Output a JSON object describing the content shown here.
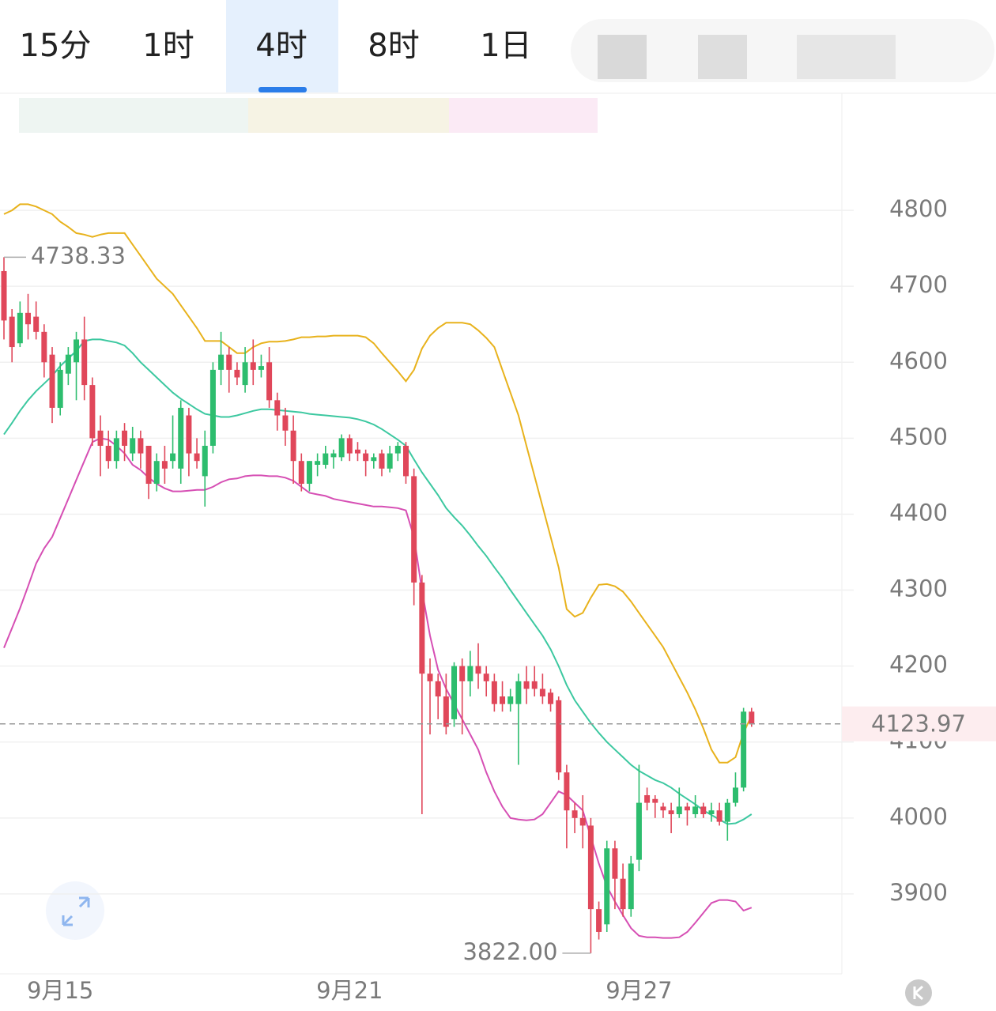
{
  "tabs": [
    "15分",
    "1时",
    "4时",
    "8时",
    "1日"
  ],
  "selected_tab": 2,
  "chart_data": {
    "type": "candlestick",
    "categories": [
      null,
      null,
      null,
      null,
      null,
      null,
      null,
      "9月15",
      null,
      null,
      null,
      null,
      null,
      null,
      null,
      null,
      null,
      null,
      null,
      null,
      null,
      null,
      null,
      null,
      null,
      null,
      null,
      null,
      null,
      null,
      null,
      null,
      null,
      null,
      null,
      null,
      null,
      null,
      null,
      null,
      null,
      null,
      null,
      "9月21",
      null,
      null,
      null,
      null,
      null,
      null,
      null,
      null,
      null,
      null,
      null,
      null,
      null,
      null,
      null,
      null,
      null,
      null,
      null,
      null,
      null,
      null,
      null,
      null,
      null,
      null,
      null,
      null,
      null,
      null,
      null,
      null,
      null,
      null,
      null,
      "9月27",
      null,
      null,
      null,
      null,
      null,
      null,
      null,
      null,
      null,
      null,
      null,
      null,
      null,
      null
    ],
    "open": [
      4720,
      4660,
      4625,
      4665,
      4660,
      4640,
      4610,
      4540,
      4585,
      4600,
      4630,
      4570,
      4510,
      4490,
      4470,
      4510,
      4480,
      4500,
      4490,
      4440,
      4470,
      4470,
      4460,
      4530,
      4480,
      4450,
      4490,
      4590,
      4610,
      4590,
      4570,
      4600,
      4590,
      4600,
      4550,
      4530,
      4510,
      4470,
      4440,
      4465,
      4465,
      4475,
      4475,
      4500,
      4485,
      4480,
      4470,
      4480,
      4460,
      4480,
      4490,
      4450,
      4310,
      4190,
      4180,
      4160,
      4130,
      4200,
      4180,
      4200,
      4190,
      4180,
      4160,
      4150,
      4150,
      4180,
      4180,
      4170,
      4165,
      4155,
      4060,
      4010,
      4000,
      3990,
      3880,
      3860,
      3960,
      3920,
      3880,
      3945,
      4030,
      4025,
      4015,
      4010,
      4005,
      4015,
      4005,
      4015,
      4005,
      4010,
      3995,
      4020,
      4040,
      4140
    ],
    "high": [
      4738.33,
      4670,
      4680,
      4690,
      4680,
      4650,
      4620,
      4600,
      4620,
      4640,
      4660,
      4580,
      4530,
      4510,
      4510,
      4520,
      4515,
      4510,
      4490,
      4480,
      4490,
      4530,
      4550,
      4540,
      4500,
      4510,
      4600,
      4640,
      4620,
      4600,
      4620,
      4630,
      4610,
      4620,
      4560,
      4540,
      4530,
      4480,
      4470,
      4480,
      4490,
      4485,
      4505,
      4505,
      4495,
      4485,
      4480,
      4485,
      4490,
      4495,
      4495,
      4460,
      4320,
      4210,
      4190,
      4190,
      4205,
      4210,
      4220,
      4230,
      4200,
      4190,
      4180,
      4170,
      4190,
      4200,
      4200,
      4190,
      4170,
      4160,
      4070,
      4020,
      4030,
      4000,
      3890,
      3970,
      3970,
      3940,
      3950,
      4070,
      4040,
      4030,
      4020,
      4020,
      4040,
      4020,
      4030,
      4020,
      4020,
      4020,
      4025,
      4060,
      4145,
      4145
    ],
    "low": [
      4630,
      4600,
      4620,
      4630,
      4630,
      4580,
      4520,
      4530,
      4570,
      4550,
      4550,
      4490,
      4450,
      4460,
      4460,
      4470,
      4470,
      4460,
      4420,
      4430,
      4440,
      4460,
      4440,
      4450,
      4460,
      4410,
      4480,
      4570,
      4560,
      4570,
      4560,
      4570,
      4580,
      4540,
      4510,
      4490,
      4440,
      4430,
      4430,
      4450,
      4460,
      4460,
      4470,
      4470,
      4470,
      4450,
      4460,
      4450,
      4455,
      4470,
      4440,
      4280,
      4005,
      4110,
      4130,
      4110,
      4120,
      4110,
      4160,
      4170,
      4160,
      4140,
      4140,
      4140,
      4070,
      4150,
      4160,
      4150,
      4140,
      4050,
      3960,
      3980,
      3960,
      3822,
      3840,
      3850,
      3880,
      3870,
      3870,
      3930,
      4010,
      4000,
      4000,
      3980,
      4000,
      3990,
      4000,
      4000,
      3995,
      3990,
      3970,
      4015,
      4035,
      4120
    ],
    "close": [
      4655,
      4620,
      4665,
      4650,
      4640,
      4600,
      4540,
      4590,
      4610,
      4630,
      4570,
      4500,
      4490,
      4470,
      4500,
      4490,
      4500,
      4480,
      4440,
      4470,
      4460,
      4480,
      4540,
      4480,
      4470,
      4490,
      4590,
      4610,
      4590,
      4580,
      4600,
      4590,
      4595,
      4550,
      4530,
      4510,
      4470,
      4440,
      4470,
      4470,
      4480,
      4480,
      4500,
      4480,
      4480,
      4470,
      4475,
      4460,
      4480,
      4490,
      4450,
      4310,
      4190,
      4180,
      4160,
      4120,
      4200,
      4180,
      4200,
      4190,
      4180,
      4150,
      4150,
      4160,
      4180,
      4170,
      4170,
      4160,
      4150,
      4060,
      4010,
      4000,
      3990,
      3880,
      3850,
      3960,
      3920,
      3880,
      3940,
      4020,
      4020,
      4020,
      4010,
      4005,
      4015,
      4010,
      4015,
      4005,
      4010,
      3995,
      4020,
      4040,
      4140,
      4123.97
    ],
    "up_color": "#2dbd6e",
    "down_color": "#e0475a",
    "series": [
      {
        "color": "#e8b21c",
        "values": [
          4795,
          4800,
          4808,
          4808,
          4805,
          4800,
          4795,
          4785,
          4778,
          4770,
          4768,
          4765,
          4768,
          4770,
          4770,
          4770,
          4755,
          4740,
          4725,
          4710,
          4700,
          4690,
          4675,
          4660,
          4645,
          4628,
          4628,
          4628,
          4620,
          4612,
          4612,
          4620,
          4625,
          4627,
          4627,
          4628,
          4630,
          4633,
          4633,
          4634,
          4634,
          4635,
          4635,
          4635,
          4635,
          4633,
          4625,
          4612,
          4600,
          4588,
          4575,
          4590,
          4618,
          4635,
          4645,
          4652,
          4652,
          4652,
          4650,
          4642,
          4632,
          4620,
          4590,
          4560,
          4530,
          4490,
          4450,
          4410,
          4370,
          4330,
          4275,
          4265,
          4270,
          4290,
          4307,
          4308,
          4305,
          4298,
          4285,
          4270,
          4255,
          4240,
          4225,
          4205,
          4185,
          4165,
          4143,
          4118,
          4090,
          4073,
          4073,
          4080,
          4112,
          4135
        ]
      },
      {
        "color": "#3cc8a0",
        "values": [
          4505,
          4520,
          4536,
          4550,
          4562,
          4572,
          4582,
          4595,
          4605,
          4615,
          4628,
          4630,
          4630,
          4628,
          4626,
          4622,
          4612,
          4600,
          4590,
          4580,
          4570,
          4560,
          4552,
          4545,
          4538,
          4532,
          4530,
          4528,
          4528,
          4530,
          4533,
          4536,
          4538,
          4538,
          4537,
          4536,
          4535,
          4534,
          4532,
          4531,
          4530,
          4529,
          4528,
          4527,
          4525,
          4522,
          4518,
          4512,
          4505,
          4498,
          4490,
          4472,
          4455,
          4440,
          4425,
          4408,
          4396,
          4385,
          4372,
          4358,
          4345,
          4330,
          4316,
          4300,
          4285,
          4270,
          4255,
          4240,
          4222,
          4200,
          4175,
          4155,
          4140,
          4125,
          4112,
          4100,
          4090,
          4080,
          4070,
          4062,
          4056,
          4050,
          4046,
          4040,
          4032,
          4025,
          4018,
          4010,
          4004,
          3998,
          3992,
          3993,
          3998,
          4005
        ]
      },
      {
        "color": "#d64fb4",
        "values": [
          4224,
          4250,
          4276,
          4305,
          4335,
          4355,
          4370,
          4395,
          4420,
          4445,
          4470,
          4495,
          4500,
          4498,
          4490,
          4480,
          4465,
          4458,
          4448,
          4440,
          4434,
          4430,
          4430,
          4431,
          4432,
          4432,
          4436,
          4442,
          4446,
          4447,
          4450,
          4451,
          4451,
          4450,
          4450,
          4448,
          4444,
          4436,
          4428,
          4426,
          4424,
          4420,
          4418,
          4416,
          4414,
          4412,
          4410,
          4410,
          4409,
          4408,
          4405,
          4370,
          4300,
          4240,
          4195,
          4170,
          4150,
          4130,
          4110,
          4090,
          4060,
          4035,
          4015,
          4000,
          3998,
          3997,
          3998,
          4005,
          4020,
          4035,
          4030,
          4020,
          4010,
          3975,
          3940,
          3910,
          3890,
          3872,
          3855,
          3845,
          3843,
          3843,
          3842,
          3842,
          3843,
          3850,
          3862,
          3875,
          3888,
          3892,
          3892,
          3890,
          3878,
          3882
        ]
      }
    ],
    "ylim": [
      3800,
      4900
    ],
    "yticks": [
      3900,
      4000,
      4100,
      4200,
      4300,
      4400,
      4500,
      4600,
      4700,
      4800
    ],
    "grid": true,
    "annotations": [
      {
        "value": 4738.33,
        "label": "4738.33"
      },
      {
        "value": 3822,
        "label": "3822.00"
      }
    ],
    "last_price": {
      "value": 4123.97,
      "label": "4123.97"
    }
  }
}
